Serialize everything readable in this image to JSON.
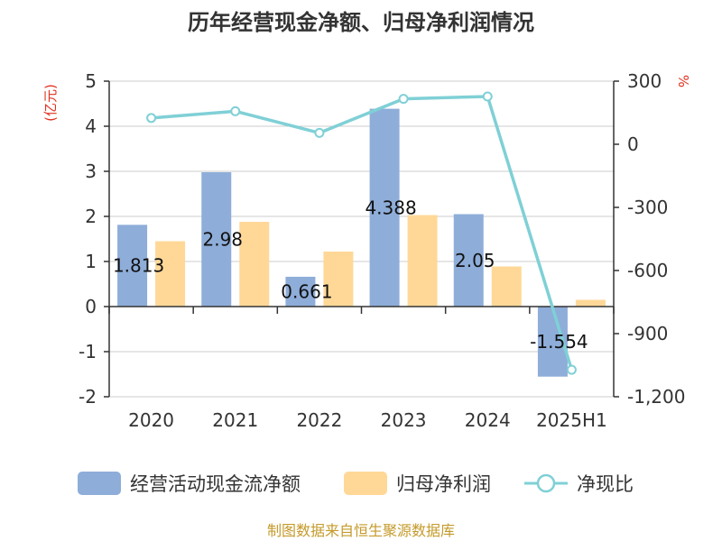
{
  "chart_data": {
    "type": "bar",
    "title": "历年经营现金净额、归母净利润情况",
    "categories": [
      "2020",
      "2021",
      "2022",
      "2023",
      "2024",
      "2025H1"
    ],
    "series": [
      {
        "name": "经营活动现金流净额",
        "type": "bar",
        "axis": "left",
        "color": "#8eadd9",
        "values": [
          1.813,
          2.98,
          0.661,
          4.388,
          2.05,
          -1.554
        ]
      },
      {
        "name": "归母净利润",
        "type": "bar",
        "axis": "left",
        "color": "#ffd898",
        "values": [
          1.45,
          1.88,
          1.22,
          2.03,
          0.89,
          0.15
        ]
      },
      {
        "name": "净现比",
        "type": "line",
        "axis": "right",
        "color": "#7fd0d6",
        "values": [
          125,
          157,
          54,
          216,
          227,
          -1072
        ]
      }
    ],
    "data_labels": [
      "1.813",
      "2.98",
      "0.661",
      "4.388",
      "2.05",
      "-1.554"
    ],
    "left_axis": {
      "unit": "(亿元)",
      "ylim": [
        -2,
        5
      ],
      "ticks": [
        "-2",
        "-1",
        "0",
        "1",
        "2",
        "3",
        "4",
        "5"
      ]
    },
    "right_axis": {
      "unit": "%",
      "ylim": [
        -1200,
        300
      ],
      "ticks": [
        "-1,200",
        "-900",
        "-600",
        "-300",
        "0",
        "300"
      ]
    },
    "grid": true,
    "legend_position": "bottom",
    "source": "制图数据来自恒生聚源数据库"
  }
}
